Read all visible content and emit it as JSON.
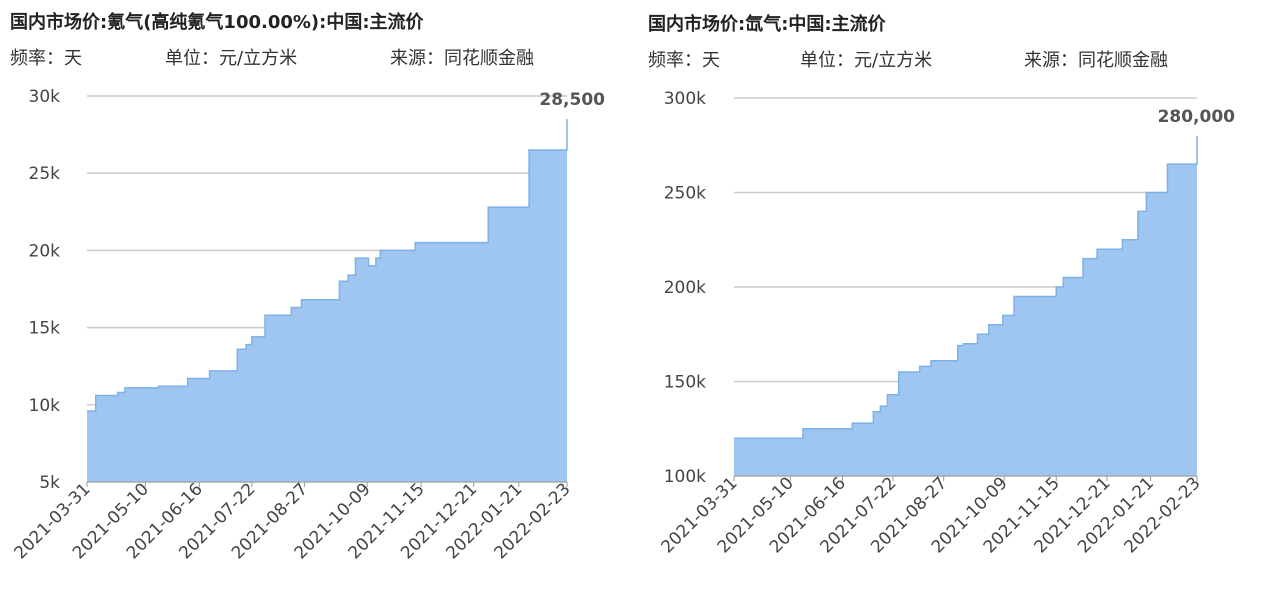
{
  "charts": [
    {
      "title": "国内市场价:氪气(高纯氪气100.00%):中国:主流价",
      "freq": "频率：天",
      "unit": "单位：元/立方米",
      "source": "来源：同花顺金融"
    },
    {
      "title": "国内市场价:氙气:中国:主流价",
      "freq": "频率：天",
      "unit": "单位：元/立方米",
      "source": "来源：同花顺金融"
    }
  ],
  "colors": {
    "fill": "#9ec6f0",
    "stroke": "#7fb1e6",
    "grid": "#cccccc",
    "axis": "#999999"
  },
  "chart_data": [
    {
      "type": "area",
      "title": "国内市场价:氪气(高纯氪气100.00%):中国:主流价",
      "xlabel": "",
      "ylabel": "",
      "ylim": [
        5000,
        30000
      ],
      "yticks": [
        5000,
        10000,
        15000,
        20000,
        25000,
        30000
      ],
      "ytick_labels": [
        "5k",
        "10k",
        "15k",
        "20k",
        "25k",
        "30k"
      ],
      "xticks": [
        "2021-03-31",
        "2021-05-10",
        "2021-06-16",
        "2021-07-22",
        "2021-08-27",
        "2021-10-09",
        "2021-11-15",
        "2021-12-21",
        "2022-01-21",
        "2022-02-23"
      ],
      "x": [
        "2021-03-31",
        "2021-04-06",
        "2021-04-21",
        "2021-04-26",
        "2021-05-19",
        "2021-06-08",
        "2021-06-23",
        "2021-07-12",
        "2021-07-18",
        "2021-07-22",
        "2021-07-31",
        "2021-08-18",
        "2021-08-25",
        "2021-09-20",
        "2021-09-26",
        "2021-10-01",
        "2021-10-10",
        "2021-10-15",
        "2021-10-18",
        "2021-10-23",
        "2021-11-11",
        "2021-12-10",
        "2021-12-31",
        "2022-01-28",
        "2022-02-15",
        "2022-02-20",
        "2022-02-23"
      ],
      "values": [
        9600,
        10600,
        10800,
        11100,
        11200,
        11700,
        12200,
        13600,
        13900,
        14400,
        15800,
        16300,
        16800,
        18000,
        18400,
        19500,
        19000,
        19500,
        20000,
        20000,
        20500,
        20500,
        22800,
        26500,
        26500,
        26500,
        28500
      ],
      "grid": true,
      "data_labels": [
        {
          "label": "28,500"
        }
      ]
    },
    {
      "type": "area",
      "title": "国内市场价:氙气:中国:主流价",
      "xlabel": "",
      "ylabel": "",
      "ylim": [
        100000,
        300000
      ],
      "yticks": [
        100000,
        150000,
        200000,
        250000,
        300000
      ],
      "ytick_labels": [
        "100k",
        "150k",
        "200k",
        "250k",
        "300k"
      ],
      "xticks": [
        "2021-03-31",
        "2021-05-10",
        "2021-06-16",
        "2021-07-22",
        "2021-08-27",
        "2021-10-09",
        "2021-11-15",
        "2021-12-21",
        "2022-01-21",
        "2022-02-23"
      ],
      "x": [
        "2021-03-31",
        "2021-05-19",
        "2021-06-23",
        "2021-07-08",
        "2021-07-13",
        "2021-07-18",
        "2021-07-26",
        "2021-08-10",
        "2021-08-18",
        "2021-09-06",
        "2021-09-10",
        "2021-09-20",
        "2021-09-28",
        "2021-10-08",
        "2021-10-16",
        "2021-10-23",
        "2021-11-15",
        "2021-11-20",
        "2021-12-04",
        "2021-12-14",
        "2022-01-01",
        "2022-01-12",
        "2022-01-18",
        "2022-02-02",
        "2022-02-20",
        "2022-02-23"
      ],
      "values": [
        120000,
        125000,
        128000,
        134000,
        137000,
        143000,
        155000,
        158000,
        161000,
        169000,
        170000,
        175000,
        180000,
        185000,
        195000,
        195000,
        200000,
        205000,
        215000,
        220000,
        225000,
        240000,
        250000,
        265000,
        265000,
        280000
      ],
      "grid": true,
      "data_labels": [
        {
          "label": "280,000"
        }
      ]
    }
  ]
}
